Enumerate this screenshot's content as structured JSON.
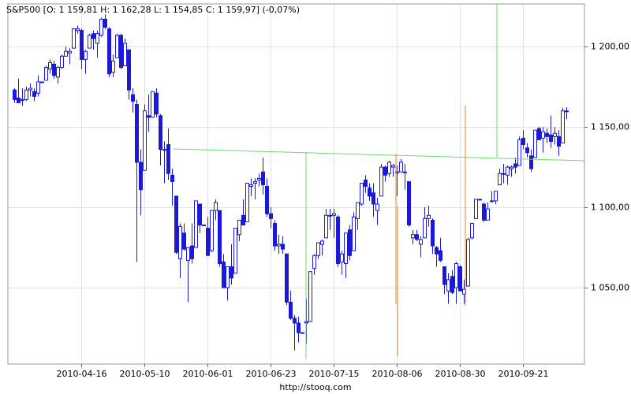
{
  "chart_data": {
    "type": "candlestick",
    "title": "S&P500 [O: 1 159,81  H: 1 162,28  L: 1 154,85  C: 1 159,97] (-0,07%)",
    "footer": "http://stooq.com",
    "color": "#1a1ad6",
    "up_fill": "#ffffff",
    "grid": true,
    "ylim": [
      1002.5,
      1226.5
    ],
    "yticks": [
      {
        "value": 1050,
        "label": "1 050,00"
      },
      {
        "value": 1100,
        "label": "1 100,00"
      },
      {
        "value": 1150,
        "label": "1 150,00"
      },
      {
        "value": 1200,
        "label": "1 200,00"
      }
    ],
    "categories": [
      null,
      null,
      null,
      null,
      null,
      null,
      null,
      null,
      null,
      null,
      null,
      null,
      null,
      null,
      null,
      null,
      null,
      "2010-04-16",
      null,
      null,
      null,
      null,
      null,
      null,
      null,
      null,
      null,
      null,
      null,
      null,
      null,
      null,
      null,
      "2010-05-10",
      null,
      null,
      null,
      null,
      null,
      null,
      null,
      null,
      null,
      null,
      null,
      null,
      null,
      null,
      null,
      "2010-06-01",
      null,
      null,
      null,
      null,
      null,
      null,
      null,
      null,
      null,
      null,
      null,
      null,
      null,
      null,
      null,
      "2010-06-23",
      null,
      null,
      null,
      null,
      null,
      null,
      null,
      null,
      null,
      null,
      null,
      null,
      null,
      null,
      null,
      "2010-07-15",
      null,
      null,
      null,
      null,
      null,
      null,
      null,
      null,
      null,
      null,
      null,
      null,
      null,
      null,
      null,
      "2010-08-06",
      null,
      null,
      null,
      null,
      null,
      null,
      null,
      null,
      null,
      null,
      null,
      null,
      null,
      null,
      null,
      "2010-08-30",
      null,
      null,
      null,
      null,
      null,
      null,
      null,
      null,
      null,
      null,
      null,
      null,
      null,
      null,
      null,
      "2010-09-21",
      null,
      null,
      null,
      null,
      null,
      null,
      null,
      null,
      null,
      null,
      null
    ],
    "open": [
      1173,
      1168,
      1167,
      1167,
      1173,
      1172,
      1171,
      1178,
      1179,
      1186,
      1189,
      1181,
      1187,
      1194,
      1196,
      1199,
      1210,
      1210,
      1192,
      1199,
      1208,
      1202,
      1207,
      1217,
      1211,
      1184,
      1193,
      1207,
      1188,
      1198,
      1170,
      1164,
      1128,
      1123,
      1157,
      1156,
      1171,
      1157,
      1136,
      1139,
      1120,
      1107,
      1068,
      1084,
      1067,
      1076,
      1075,
      1102,
      1089,
      1087,
      1073,
      1098,
      1098,
      1066,
      1050,
      1063,
      1059,
      1083,
      1095,
      1091,
      1113,
      1115,
      1117,
      1122,
      1113,
      1096,
      1090,
      1076,
      1077,
      1071,
      1041,
      1031,
      1028,
      1022,
      1029,
      1029,
      1062,
      1070,
      1077,
      1081,
      1095,
      1095,
      1094,
      1066,
      1065,
      1086,
      1073,
      1093,
      1102,
      1117,
      1112,
      1109,
      1098,
      1107,
      1125,
      1121,
      1125,
      1122,
      1122,
      1122,
      1116,
      1081,
      1083,
      1077,
      1081,
      1093,
      1092,
      1075,
      1073,
      1063,
      1048,
      1057,
      1050,
      1063,
      1046,
      1051,
      1081,
      1093,
      1105,
      1102,
      1092,
      1104,
      1104,
      1114,
      1121,
      1120,
      1124,
      1127,
      1126,
      1143,
      1137,
      1132,
      1131,
      1149,
      1143,
      1146,
      1145,
      1144,
      1144,
      1140,
      1159.81
    ],
    "high": [
      1174,
      1180,
      1174,
      1175,
      1177,
      1174,
      1182,
      1178,
      1188,
      1192,
      1191,
      1188,
      1195,
      1200,
      1199,
      1211,
      1213,
      1211,
      1198,
      1208,
      1210,
      1210,
      1218,
      1220,
      1212,
      1195,
      1208,
      1208,
      1205,
      1198,
      1174,
      1167,
      1136,
      1164,
      1170,
      1172,
      1174,
      1158,
      1141,
      1149,
      1124,
      1107,
      1090,
      1090,
      1075,
      1090,
      1104,
      1102,
      1089,
      1094,
      1098,
      1105,
      1098,
      1071,
      1063,
      1077,
      1087,
      1092,
      1105,
      1115,
      1118,
      1118,
      1121,
      1131,
      1118,
      1100,
      1092,
      1083,
      1082,
      1071,
      1048,
      1033,
      1032,
      1022,
      1043,
      1060,
      1071,
      1078,
      1080,
      1099,
      1099,
      1099,
      1095,
      1073,
      1084,
      1089,
      1097,
      1103,
      1115,
      1120,
      1115,
      1115,
      1106,
      1127,
      1126,
      1129,
      1127,
      1126,
      1130,
      1127,
      1116,
      1086,
      1086,
      1082,
      1100,
      1101,
      1093,
      1076,
      1081,
      1063,
      1059,
      1061,
      1066,
      1064,
      1055,
      1081,
      1090,
      1105,
      1105,
      1103,
      1103,
      1110,
      1110,
      1124,
      1127,
      1126,
      1126,
      1131,
      1144,
      1148,
      1140,
      1136,
      1148,
      1150,
      1150,
      1149,
      1157,
      1150,
      1148,
      1162,
      1162.28
    ],
    "low": [
      1165,
      1165,
      1163,
      1166,
      1169,
      1166,
      1169,
      1178,
      1179,
      1183,
      1180,
      1177,
      1186,
      1194,
      1189,
      1199,
      1208,
      1186,
      1183,
      1199,
      1198,
      1193,
      1206,
      1211,
      1181,
      1181,
      1193,
      1186,
      1188,
      1167,
      1159,
      1066,
      1095,
      1123,
      1147,
      1156,
      1156,
      1126,
      1115,
      1117,
      1101,
      1071,
      1056,
      1073,
      1041,
      1065,
      1075,
      1084,
      1089,
      1070,
      1072,
      1092,
      1063,
      1050,
      1042,
      1052,
      1059,
      1079,
      1089,
      1091,
      1107,
      1105,
      1113,
      1108,
      1094,
      1087,
      1073,
      1071,
      1071,
      1039,
      1030,
      1011,
      1016,
      1022,
      1015,
      1029,
      1058,
      1068,
      1070,
      1081,
      1086,
      1081,
      1063,
      1058,
      1056,
      1067,
      1073,
      1086,
      1101,
      1109,
      1104,
      1094,
      1089,
      1107,
      1116,
      1119,
      1119,
      1107,
      1122,
      1111,
      1088,
      1077,
      1079,
      1069,
      1081,
      1088,
      1071,
      1063,
      1066,
      1046,
      1040,
      1046,
      1040,
      1048,
      1040,
      1051,
      1080,
      1093,
      1105,
      1091,
      1092,
      1103,
      1102,
      1114,
      1115,
      1114,
      1119,
      1121,
      1126,
      1136,
      1131,
      1122,
      1131,
      1142,
      1134,
      1140,
      1137,
      1139,
      1132,
      1140,
      1154.85
    ],
    "close": [
      1167,
      1165,
      1167,
      1173,
      1174,
      1169,
      1178,
      1178,
      1187,
      1190,
      1182,
      1187,
      1194,
      1197,
      1197,
      1211,
      1211,
      1192,
      1197,
      1207,
      1205,
      1208,
      1217,
      1212,
      1183,
      1191,
      1207,
      1187,
      1202,
      1173,
      1166,
      1128,
      1111,
      1160,
      1156,
      1172,
      1158,
      1136,
      1136,
      1121,
      1116,
      1072,
      1088,
      1074,
      1075,
      1068,
      1104,
      1089,
      1089,
      1070,
      1098,
      1103,
      1065,
      1050,
      1063,
      1056,
      1087,
      1092,
      1089,
      1115,
      1114,
      1116,
      1118,
      1114,
      1096,
      1093,
      1076,
      1077,
      1074,
      1041,
      1031,
      1028,
      1022,
      1022,
      1028,
      1060,
      1070,
      1078,
      1079,
      1095,
      1095,
      1096,
      1065,
      1071,
      1084,
      1070,
      1094,
      1103,
      1115,
      1113,
      1107,
      1102,
      1102,
      1125,
      1120,
      1128,
      1126,
      1122,
      1128,
      1122,
      1089,
      1083,
      1080,
      1080,
      1093,
      1095,
      1076,
      1071,
      1067,
      1052,
      1055,
      1047,
      1065,
      1048,
      1049,
      1080,
      1090,
      1105,
      1105,
      1092,
      1099,
      1104,
      1110,
      1121,
      1121,
      1125,
      1125,
      1125,
      1142,
      1139,
      1134,
      1124,
      1148,
      1142,
      1147,
      1144,
      1141,
      1146,
      1138,
      1160,
      1159.97
    ]
  }
}
